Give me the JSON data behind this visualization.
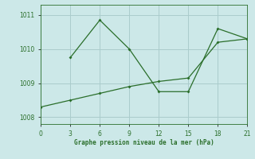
{
  "line1_x": [
    0,
    3,
    6,
    9,
    12,
    15,
    18,
    21
  ],
  "line1_y": [
    1008.3,
    1008.5,
    1008.7,
    1008.9,
    1009.05,
    1009.15,
    1010.2,
    1010.3
  ],
  "line2_x": [
    3,
    6,
    9,
    12,
    15,
    18,
    21
  ],
  "line2_y": [
    1009.75,
    1010.85,
    1010.0,
    1008.75,
    1008.75,
    1010.6,
    1010.3
  ],
  "color": "#2a6e2a",
  "xlabel": "Graphe pression niveau de la mer (hPa)",
  "xlim": [
    0,
    21
  ],
  "ylim": [
    1007.8,
    1011.3
  ],
  "yticks": [
    1008,
    1009,
    1010,
    1011
  ],
  "xticks": [
    0,
    3,
    6,
    9,
    12,
    15,
    18,
    21
  ],
  "bg_color": "#cce8e8",
  "grid_color": "#aacccc"
}
